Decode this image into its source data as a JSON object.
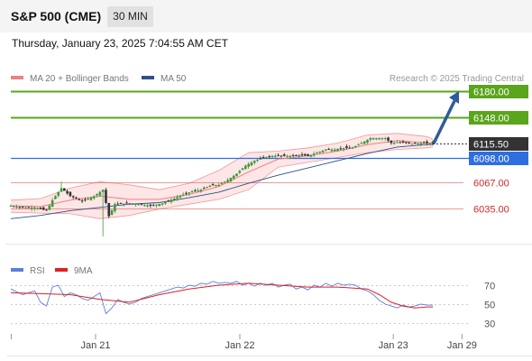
{
  "header": {
    "symbol": "S&P 500 (CME)",
    "interval": "30 MIN",
    "datetime": "Thursday, January 23, 2025 7:04:55 AM CET"
  },
  "colors": {
    "bollinger": "#f08080",
    "band_fill": "#fde6e6",
    "ma50": "#2e4f8a",
    "resistance": "#5aa51c",
    "support_red": "#e05858",
    "pivot_blue": "#2f6ee0",
    "current": "#333333",
    "arrow": "#2e5c9a",
    "rsi": "#5b7fdb",
    "rsi_ma": "#e02020",
    "candle_up": "#3c9b3c",
    "candle_down": "#333333"
  },
  "chart_data": [
    {
      "type": "candlestick",
      "legend": [
        {
          "name": "MA 20 + Bollinger Bands",
          "color": "#f08080"
        },
        {
          "name": "MA 50",
          "color": "#2e4f8a"
        }
      ],
      "legend_placement": "top-left",
      "source": "Research © 2025 Trading Central",
      "ylim": [
        6010,
        6195
      ],
      "x_labels": [
        {
          "label": "Jan 21",
          "t": 0.185
        },
        {
          "label": "Jan 22",
          "t": 0.5
        },
        {
          "label": "Jan 23",
          "t": 0.835
        },
        {
          "label": "Jan 29",
          "t": 0.985
        }
      ],
      "levels": [
        {
          "value": 6180.0,
          "label": "6180.00",
          "kind": "resistance"
        },
        {
          "value": 6148.0,
          "label": "6148.00",
          "kind": "resistance"
        },
        {
          "value": 6115.5,
          "label": "6115.50",
          "kind": "current"
        },
        {
          "value": 6098.0,
          "label": "6098.00",
          "kind": "pivot"
        },
        {
          "value": 6067.0,
          "label": "6067.00",
          "kind": "support"
        },
        {
          "value": 6035.0,
          "label": "6035.00",
          "kind": "support"
        }
      ],
      "arrow": {
        "from": 6115.5,
        "to": 6176
      },
      "price_path": [
        [
          0,
          6038
        ],
        [
          4,
          6036
        ],
        [
          8,
          6036
        ],
        [
          12,
          6032
        ],
        [
          14,
          6045
        ],
        [
          17,
          6060
        ],
        [
          20,
          6050
        ],
        [
          24,
          6044
        ],
        [
          28,
          6050
        ],
        [
          31,
          6058
        ],
        [
          33,
          6025
        ],
        [
          35,
          6040
        ],
        [
          39,
          6041
        ],
        [
          43,
          6040
        ],
        [
          47,
          6038
        ],
        [
          51,
          6041
        ],
        [
          55,
          6047
        ],
        [
          58,
          6052
        ],
        [
          61,
          6056
        ],
        [
          64,
          6058
        ],
        [
          67,
          6063
        ],
        [
          70,
          6064
        ],
        [
          73,
          6070
        ],
        [
          76,
          6078
        ],
        [
          79,
          6088
        ],
        [
          82,
          6094
        ],
        [
          85,
          6098
        ],
        [
          88,
          6100
        ],
        [
          91,
          6100
        ],
        [
          94,
          6100
        ],
        [
          97,
          6101
        ],
        [
          100,
          6100
        ],
        [
          103,
          6104
        ],
        [
          106,
          6108
        ],
        [
          109,
          6108
        ],
        [
          112,
          6110
        ],
        [
          115,
          6110
        ],
        [
          118,
          6116
        ],
        [
          121,
          6122
        ],
        [
          124,
          6122
        ],
        [
          126,
          6122
        ],
        [
          128,
          6116
        ],
        [
          130,
          6117
        ],
        [
          133,
          6116
        ],
        [
          136,
          6115
        ],
        [
          139,
          6116
        ],
        [
          142,
          6115.5
        ]
      ],
      "ma20": [
        [
          0,
          6038
        ],
        [
          10,
          6037
        ],
        [
          20,
          6045
        ],
        [
          30,
          6050
        ],
        [
          40,
          6046
        ],
        [
          50,
          6046
        ],
        [
          60,
          6052
        ],
        [
          70,
          6062
        ],
        [
          80,
          6080
        ],
        [
          90,
          6096
        ],
        [
          100,
          6100
        ],
        [
          110,
          6106
        ],
        [
          120,
          6114
        ],
        [
          130,
          6119
        ],
        [
          140,
          6116
        ],
        [
          142,
          6116
        ]
      ],
      "bb_upper": [
        [
          0,
          6045
        ],
        [
          10,
          6047
        ],
        [
          20,
          6060
        ],
        [
          30,
          6068
        ],
        [
          40,
          6064
        ],
        [
          50,
          6058
        ],
        [
          60,
          6066
        ],
        [
          70,
          6082
        ],
        [
          80,
          6104
        ],
        [
          90,
          6106
        ],
        [
          100,
          6110
        ],
        [
          110,
          6116
        ],
        [
          120,
          6126
        ],
        [
          130,
          6128
        ],
        [
          140,
          6124
        ],
        [
          142,
          6121
        ]
      ],
      "bb_lower": [
        [
          0,
          6030
        ],
        [
          10,
          6029
        ],
        [
          20,
          6028
        ],
        [
          30,
          6022
        ],
        [
          40,
          6026
        ],
        [
          50,
          6034
        ],
        [
          60,
          6040
        ],
        [
          70,
          6046
        ],
        [
          80,
          6058
        ],
        [
          90,
          6086
        ],
        [
          100,
          6092
        ],
        [
          110,
          6098
        ],
        [
          120,
          6104
        ],
        [
          130,
          6108
        ],
        [
          140,
          6110
        ],
        [
          142,
          6111
        ]
      ],
      "ma50": [
        [
          0,
          6022
        ],
        [
          10,
          6026
        ],
        [
          20,
          6032
        ],
        [
          30,
          6036
        ],
        [
          40,
          6040
        ],
        [
          50,
          6042
        ],
        [
          60,
          6048
        ],
        [
          70,
          6055
        ],
        [
          80,
          6066
        ],
        [
          90,
          6076
        ],
        [
          100,
          6085
        ],
        [
          110,
          6094
        ],
        [
          120,
          6103
        ],
        [
          130,
          6111
        ],
        [
          140,
          6114
        ],
        [
          142,
          6114
        ]
      ]
    },
    {
      "type": "line",
      "legend": [
        {
          "name": "RSI",
          "color": "#5b7fdb"
        },
        {
          "name": "9MA",
          "color": "#e02020"
        }
      ],
      "ylim": [
        20,
        85
      ],
      "levels": [
        70,
        50,
        30
      ],
      "rsi": [
        [
          0,
          66
        ],
        [
          4,
          60
        ],
        [
          8,
          64
        ],
        [
          10,
          52
        ],
        [
          12,
          48
        ],
        [
          14,
          68
        ],
        [
          16,
          70
        ],
        [
          18,
          58
        ],
        [
          20,
          62
        ],
        [
          22,
          60
        ],
        [
          24,
          56
        ],
        [
          26,
          54
        ],
        [
          28,
          58
        ],
        [
          30,
          62
        ],
        [
          32,
          40
        ],
        [
          34,
          46
        ],
        [
          36,
          55
        ],
        [
          38,
          52
        ],
        [
          40,
          50
        ],
        [
          42,
          52
        ],
        [
          44,
          56
        ],
        [
          46,
          58
        ],
        [
          48,
          60
        ],
        [
          50,
          62
        ],
        [
          52,
          64
        ],
        [
          54,
          66
        ],
        [
          56,
          68
        ],
        [
          58,
          67
        ],
        [
          60,
          70
        ],
        [
          62,
          69
        ],
        [
          64,
          72
        ],
        [
          66,
          71
        ],
        [
          68,
          74
        ],
        [
          70,
          72
        ],
        [
          72,
          73
        ],
        [
          74,
          72
        ],
        [
          76,
          74
        ],
        [
          78,
          70
        ],
        [
          80,
          72
        ],
        [
          82,
          69
        ],
        [
          84,
          72
        ],
        [
          86,
          70
        ],
        [
          88,
          72
        ],
        [
          90,
          68
        ],
        [
          92,
          70
        ],
        [
          94,
          71
        ],
        [
          96,
          66
        ],
        [
          98,
          68
        ],
        [
          100,
          65
        ],
        [
          102,
          70
        ],
        [
          104,
          68
        ],
        [
          106,
          72
        ],
        [
          108,
          69
        ],
        [
          110,
          72
        ],
        [
          112,
          70
        ],
        [
          114,
          71
        ],
        [
          116,
          70
        ],
        [
          118,
          66
        ],
        [
          120,
          64
        ],
        [
          122,
          60
        ],
        [
          124,
          54
        ],
        [
          126,
          50
        ],
        [
          128,
          48
        ],
        [
          130,
          46
        ],
        [
          132,
          49
        ],
        [
          134,
          47
        ],
        [
          136,
          48
        ],
        [
          138,
          50
        ],
        [
          140,
          49
        ],
        [
          142,
          49
        ]
      ],
      "rsi_ma": [
        [
          0,
          62
        ],
        [
          10,
          61
        ],
        [
          20,
          60
        ],
        [
          30,
          55
        ],
        [
          40,
          52
        ],
        [
          50,
          60
        ],
        [
          60,
          66
        ],
        [
          70,
          70
        ],
        [
          80,
          72
        ],
        [
          90,
          70
        ],
        [
          100,
          68
        ],
        [
          110,
          68
        ],
        [
          120,
          66
        ],
        [
          124,
          60
        ],
        [
          128,
          52
        ],
        [
          132,
          48
        ],
        [
          136,
          46
        ],
        [
          140,
          47
        ],
        [
          142,
          47
        ]
      ]
    }
  ]
}
